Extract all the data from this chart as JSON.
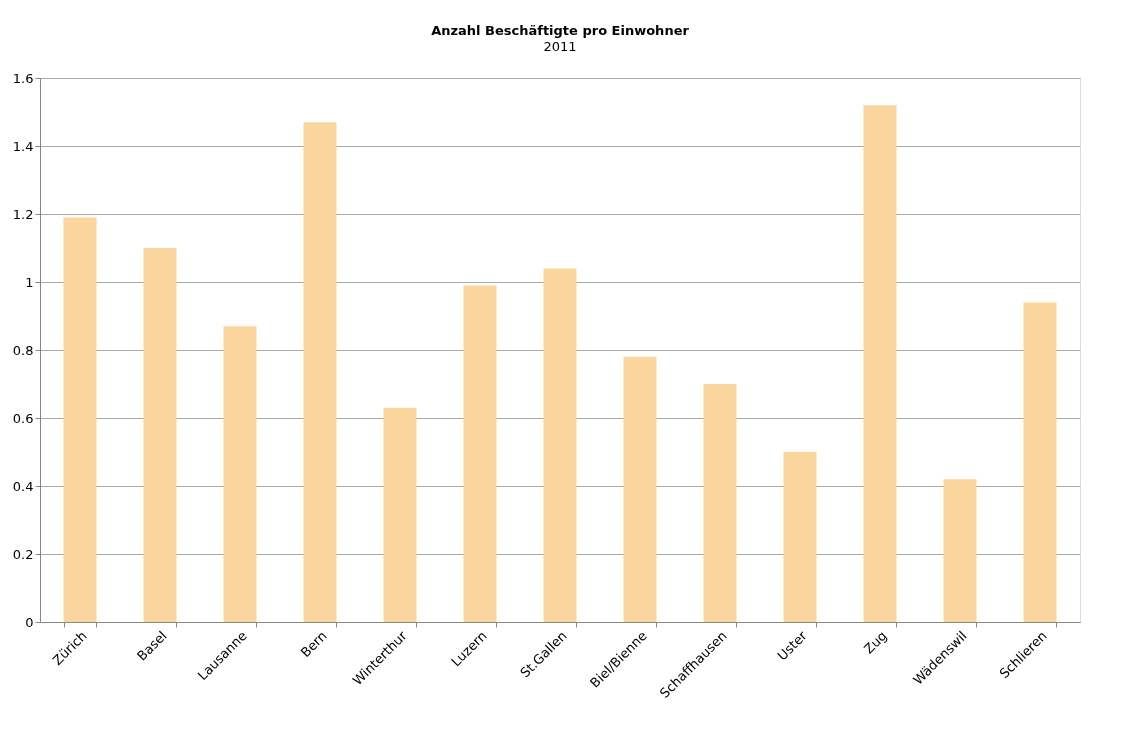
{
  "chart_data": {
    "type": "bar",
    "title": "Anzahl Beschäftigte pro Einwohner",
    "subtitle": "2011",
    "categories": [
      "Zürich",
      "Basel",
      "Lausanne",
      "Bern",
      "Winterthur",
      "Luzern",
      "St.Gallen",
      "Biel/Bienne",
      "Schaffhausen",
      "Uster",
      "Zug",
      "Wädenswil",
      "Schlieren"
    ],
    "values": [
      1.19,
      1.1,
      0.87,
      1.47,
      0.63,
      0.99,
      1.04,
      0.78,
      0.7,
      0.5,
      1.52,
      0.42,
      0.94
    ],
    "color": "#fad59e",
    "ylim": [
      0,
      1.6
    ],
    "yticks": [
      0,
      0.2,
      0.4,
      0.6,
      0.8,
      1,
      1.2,
      1.4,
      1.6
    ],
    "grid": "y"
  }
}
